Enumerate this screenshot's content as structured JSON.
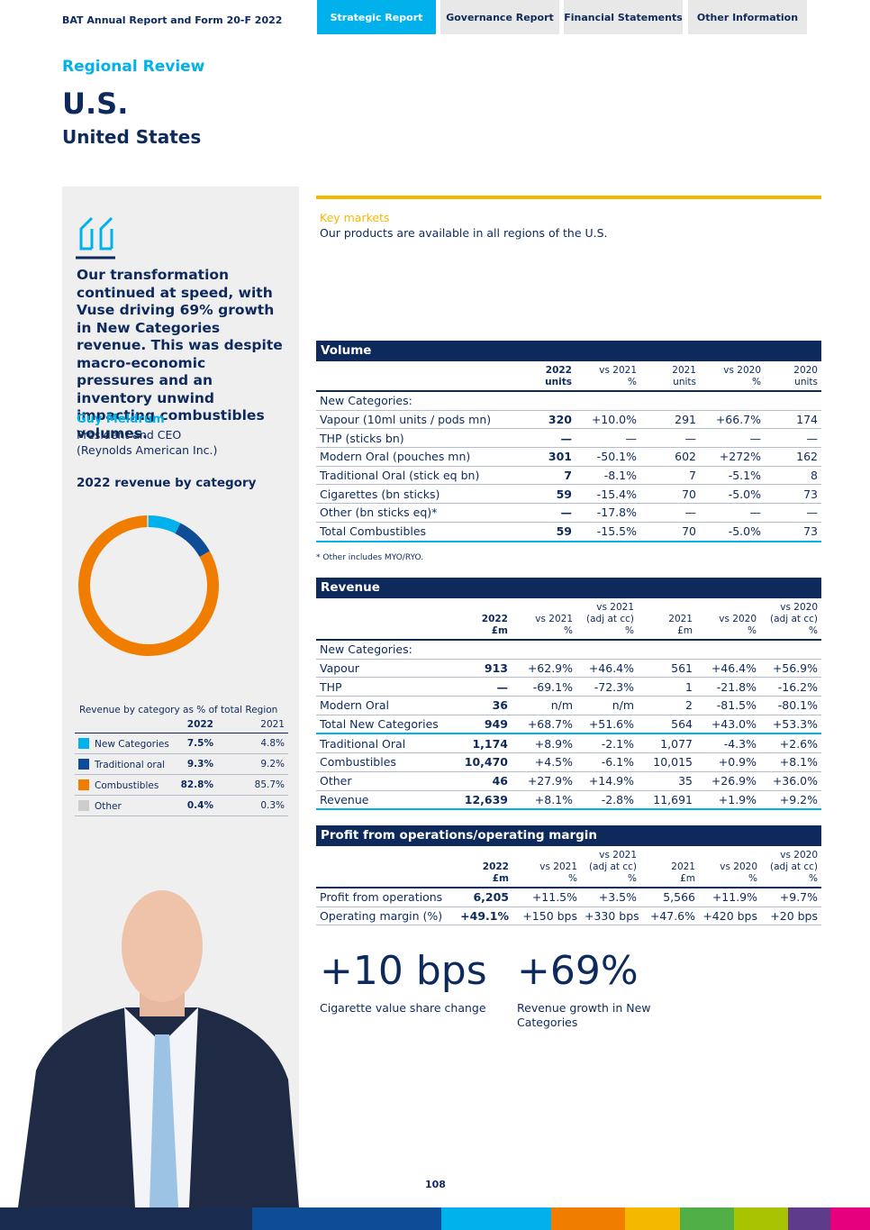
{
  "header": {
    "title": "BAT Annual Report and Form 20-F 2022",
    "tabs": [
      "Strategic Report",
      "Governance Report",
      "Financial Statements",
      "Other Information"
    ]
  },
  "section": "Regional Review",
  "title": "U.S.",
  "subtitle": "United States",
  "quote": {
    "text": "Our transformation continued at speed, with Vuse driving 69% growth in New Categories revenue. This was despite macro-economic pressures and an inventory unwind impacting combustibles volumes.",
    "name": "Guy Meldrum",
    "role": [
      "President and CEO",
      "(Reynolds American Inc.)"
    ]
  },
  "chart_data": {
    "type": "pie",
    "title": "2022 revenue by category",
    "legend_title": "Revenue by category as % of total Region",
    "categories": [
      "New Categories",
      "Traditional oral",
      "Combustibles",
      "Other"
    ],
    "colors": [
      "#00b1eb",
      "#0e4c96",
      "#f07d00",
      "#cccccc"
    ],
    "series": [
      {
        "name": "2022",
        "values": [
          7.5,
          9.3,
          82.8,
          0.4
        ],
        "value_labels": [
          "7.5%",
          "9.3%",
          "82.8%",
          "0.4%"
        ]
      },
      {
        "name": "2021",
        "values": [
          4.8,
          9.2,
          85.7,
          0.3
        ],
        "value_labels": [
          "4.8%",
          "9.2%",
          "85.7%",
          "0.3%"
        ]
      }
    ]
  },
  "key_markets": {
    "title": "Key markets",
    "text": "Our products are available in all regions of the U.S."
  },
  "volume": {
    "title": "Volume",
    "columns": [
      [
        "2022",
        "units"
      ],
      [
        "vs 2021",
        "%"
      ],
      [
        "2021",
        "units"
      ],
      [
        "vs 2020",
        "%"
      ],
      [
        "2020",
        "units"
      ]
    ],
    "rows": [
      [
        "New Categories:"
      ],
      [
        "Vapour (10ml units / pods mn)",
        "320",
        "+10.0%",
        "291",
        "+66.7%",
        "174"
      ],
      [
        "THP (sticks bn)",
        "—",
        "—",
        "—",
        "—",
        "—"
      ],
      [
        "Modern Oral (pouches mn)",
        "301",
        "-50.1%",
        "602",
        "+272%",
        "162"
      ],
      [
        "Traditional Oral (stick eq bn)",
        "7",
        "-8.1%",
        "7",
        "-5.1%",
        "8"
      ],
      [
        "Cigarettes (bn sticks)",
        "59",
        "-15.4%",
        "70",
        "-5.0%",
        "73"
      ],
      [
        "Other (bn sticks eq)*",
        "—",
        "-17.8%",
        "—",
        "—",
        "—"
      ],
      [
        "Total Combustibles",
        "59",
        "-15.5%",
        "70",
        "-5.0%",
        "73"
      ]
    ],
    "footnote": "* Other includes MYO/RYO."
  },
  "revenue": {
    "title": "Revenue",
    "columns": [
      [
        "2022",
        "£m"
      ],
      [
        "vs 2021",
        "%"
      ],
      [
        "vs 2021",
        "(adj at cc)",
        "%"
      ],
      [
        "2021",
        "£m"
      ],
      [
        "vs 2020",
        "%"
      ],
      [
        "vs 2020",
        "(adj at cc)",
        "%"
      ]
    ],
    "rows": [
      [
        "New Categories:"
      ],
      [
        "Vapour",
        "913",
        "+62.9%",
        "+46.4%",
        "561",
        "+46.4%",
        "+56.9%"
      ],
      [
        "THP",
        "—",
        "-69.1%",
        "-72.3%",
        "1",
        "-21.8%",
        "-16.2%"
      ],
      [
        "Modern Oral",
        "36",
        "n/m",
        "n/m",
        "2",
        "-81.5%",
        "-80.1%"
      ],
      [
        "Total New Categories",
        "949",
        "+68.7%",
        "+51.6%",
        "564",
        "+43.0%",
        "+53.3%"
      ],
      [
        "Traditional Oral",
        "1,174",
        "+8.9%",
        "-2.1%",
        "1,077",
        "-4.3%",
        "+2.6%"
      ],
      [
        "Combustibles",
        "10,470",
        "+4.5%",
        "-6.1%",
        "10,015",
        "+0.9%",
        "+8.1%"
      ],
      [
        "Other",
        "46",
        "+27.9%",
        "+14.9%",
        "35",
        "+26.9%",
        "+36.0%"
      ],
      [
        "Revenue",
        "12,639",
        "+8.1%",
        "-2.8%",
        "11,691",
        "+1.9%",
        "+9.2%"
      ]
    ]
  },
  "profit": {
    "title": "Profit from operations/operating margin",
    "columns": [
      [
        "2022",
        "£m"
      ],
      [
        "vs 2021",
        "%"
      ],
      [
        "vs 2021",
        "(adj at cc)",
        "%"
      ],
      [
        "2021",
        "£m"
      ],
      [
        "vs 2020",
        "%"
      ],
      [
        "vs 2020",
        "(adj at cc)",
        "%"
      ]
    ],
    "rows": [
      [
        "Profit from operations",
        "6,205",
        "+11.5%",
        "+3.5%",
        "5,566",
        "+11.9%",
        "+9.7%"
      ],
      [
        "Operating margin (%)",
        "+49.1%",
        "+150 bps",
        "+330 bps",
        "+47.6%",
        "+420 bps",
        "+20 bps"
      ]
    ]
  },
  "stats": [
    {
      "value": "+10 bps",
      "label": "Cigarette value share change"
    },
    {
      "value": "+69%",
      "label": "Revenue growth in New Categories"
    }
  ],
  "page_number": "108"
}
